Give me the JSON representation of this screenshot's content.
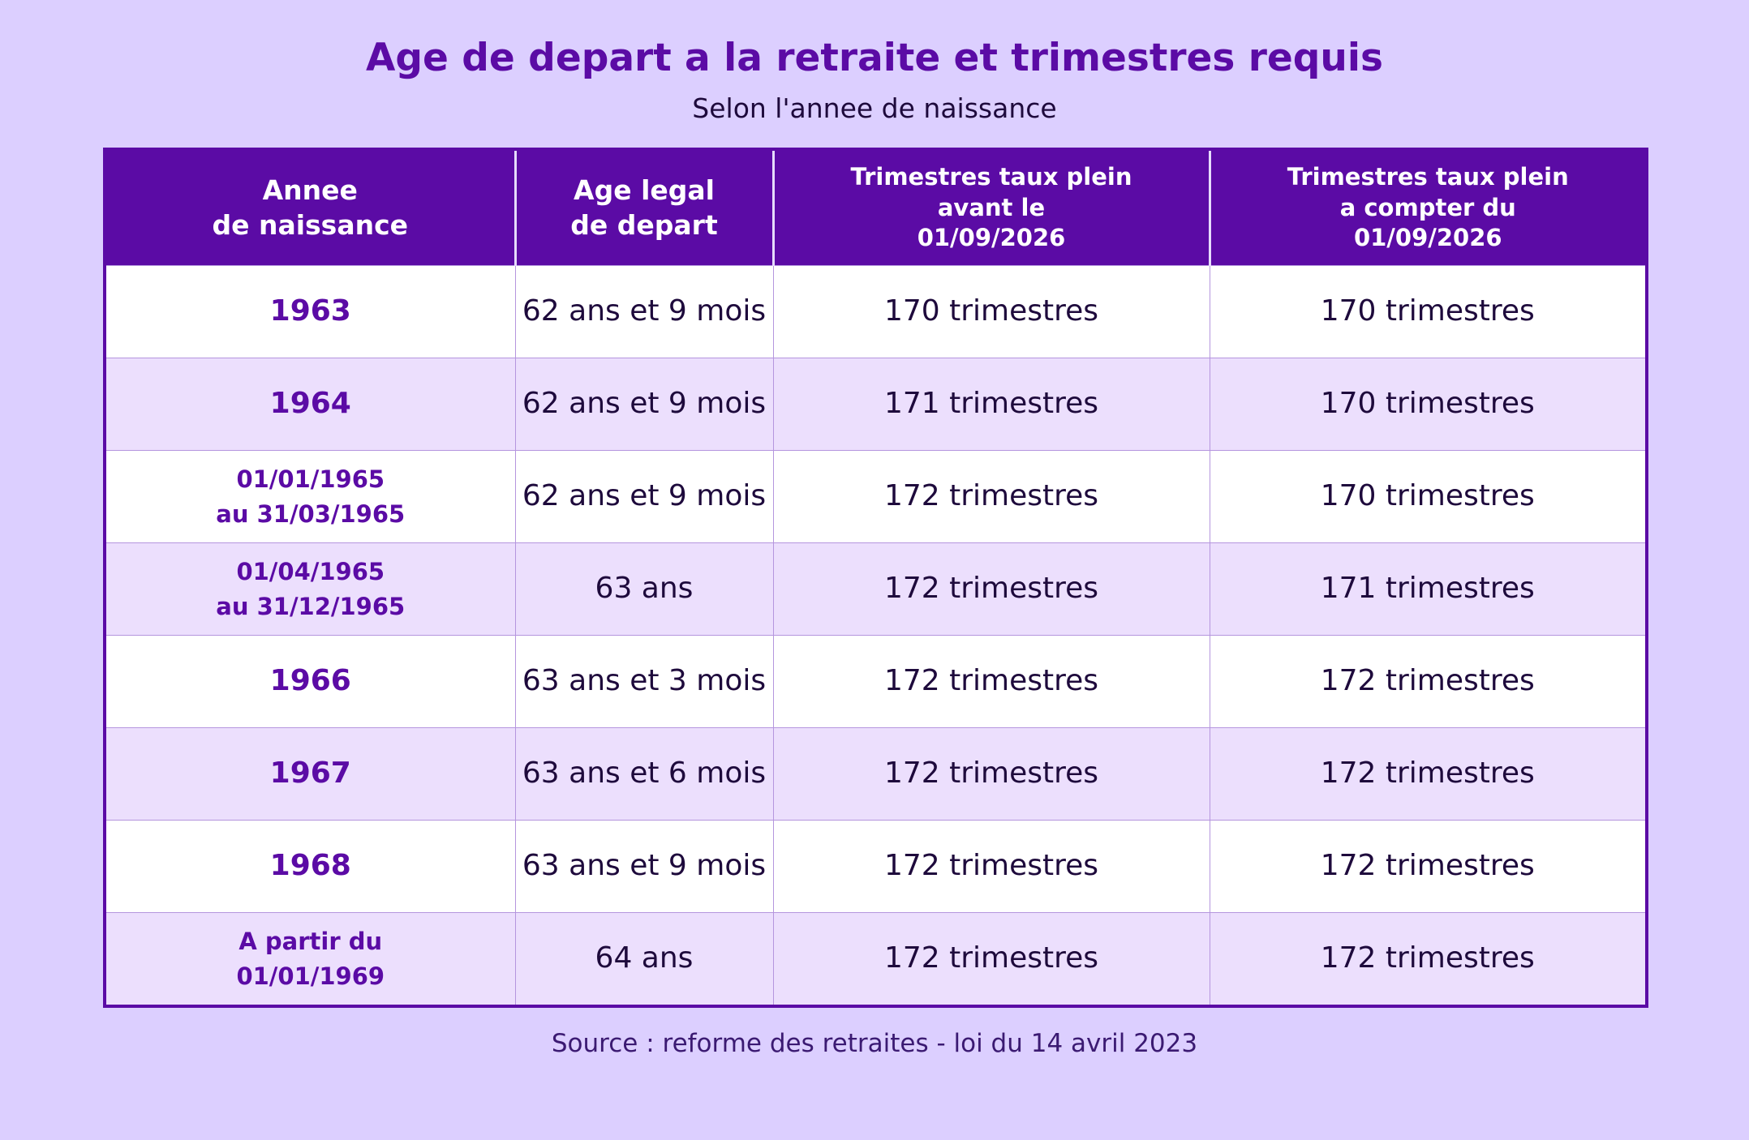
{
  "header": {
    "title": "Age de depart a la retraite et trimestres requis",
    "subtitle": "Selon l'annee de naissance"
  },
  "table": {
    "columns": [
      "Annee\nde naissance",
      "Age legal\nde depart",
      "Trimestres taux plein\navant le\n01/09/2026",
      "Trimestres taux plein\na compter du\n01/09/2026"
    ],
    "rows": [
      [
        "1963",
        "62 ans et 9 mois",
        "170 trimestres",
        "170 trimestres"
      ],
      [
        "1964",
        "62 ans et 9 mois",
        "171 trimestres",
        "170 trimestres"
      ],
      [
        "01/01/1965\nau 31/03/1965",
        "62 ans et 9 mois",
        "172 trimestres",
        "170 trimestres"
      ],
      [
        "01/04/1965\nau 31/12/1965",
        "63 ans",
        "172 trimestres",
        "171 trimestres"
      ],
      [
        "1966",
        "63 ans et 3 mois",
        "172 trimestres",
        "172 trimestres"
      ],
      [
        "1967",
        "63 ans et 6 mois",
        "172 trimestres",
        "172 trimestres"
      ],
      [
        "1968",
        "63 ans et 9 mois",
        "172 trimestres",
        "172 trimestres"
      ],
      [
        "A partir du\n01/01/1969",
        "64 ans",
        "172 trimestres",
        "172 trimestres"
      ]
    ]
  },
  "footer": {
    "source": "Source : reforme des retraites - loi du 14 avril 2023"
  }
}
